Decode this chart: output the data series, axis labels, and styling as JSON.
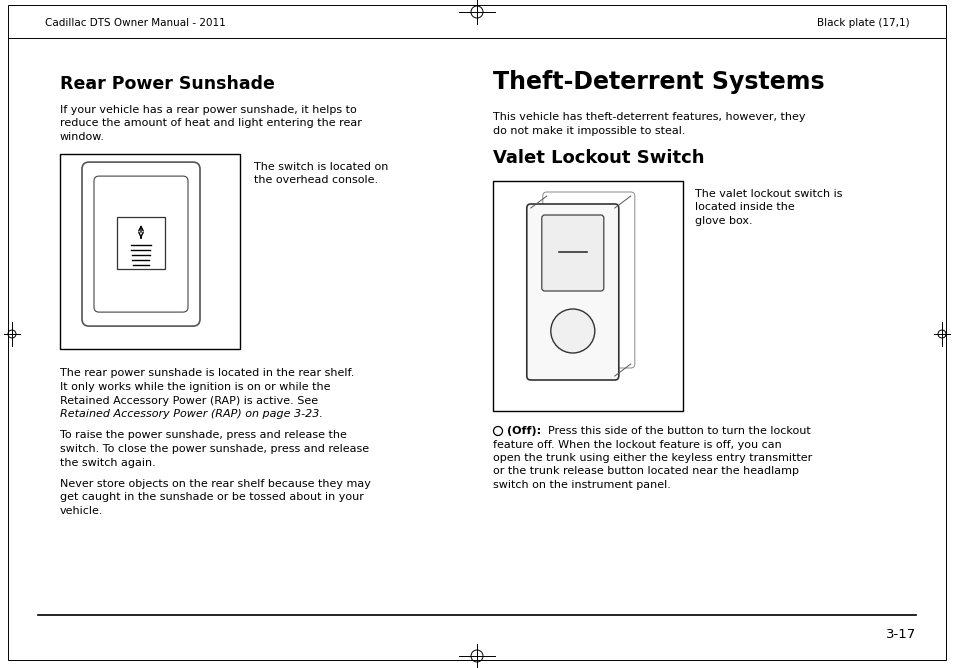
{
  "page_bg": "#ffffff",
  "header_left": "Cadillac DTS Owner Manual - 2011",
  "header_right": "Black plate (17,1)",
  "footer_page": "3-17",
  "section1_title": "Rear Power Sunshade",
  "section1_para1_lines": [
    "If your vehicle has a rear power sunshade, it helps to",
    "reduce the amount of heat and light entering the rear",
    "window."
  ],
  "section1_img_caption_lines": [
    "The switch is located on",
    "the overhead console."
  ],
  "section1_para2_lines": [
    "The rear power sunshade is located in the rear shelf.",
    "It only works while the ignition is on or while the",
    "Retained Accessory Power (RAP) is active. See",
    "Retained Accessory Power (RAP) on page 3-23."
  ],
  "section1_para2_italic_idx": 3,
  "section1_para3_lines": [
    "To raise the power sunshade, press and release the",
    "switch. To close the power sunshade, press and release",
    "the switch again."
  ],
  "section1_para4_lines": [
    "Never store objects on the rear shelf because they may",
    "get caught in the sunshade or be tossed about in your",
    "vehicle."
  ],
  "section2_title": "Theft-Deterrent Systems",
  "section2_para1_lines": [
    "This vehicle has theft-deterrent features, however, they",
    "do not make it impossible to steal."
  ],
  "section3_title": "Valet Lockout Switch",
  "section3_img_caption_lines": [
    "The valet lockout switch is",
    "located inside the",
    "glove box."
  ],
  "section3_para1_rest_lines": [
    "Press this side of the button to turn the lockout",
    "feature off. When the lockout feature is off, you can",
    "open the trunk using either the keyless entry transmitter",
    "or the trunk release button located near the headlamp",
    "switch on the instrument panel."
  ],
  "text_color": "#000000",
  "header_fontsize": 7.5,
  "body_fontsize": 8.0,
  "title1_fontsize": 12.5,
  "title2_fontsize": 17,
  "title3_fontsize": 13,
  "footer_fontsize": 9.5
}
